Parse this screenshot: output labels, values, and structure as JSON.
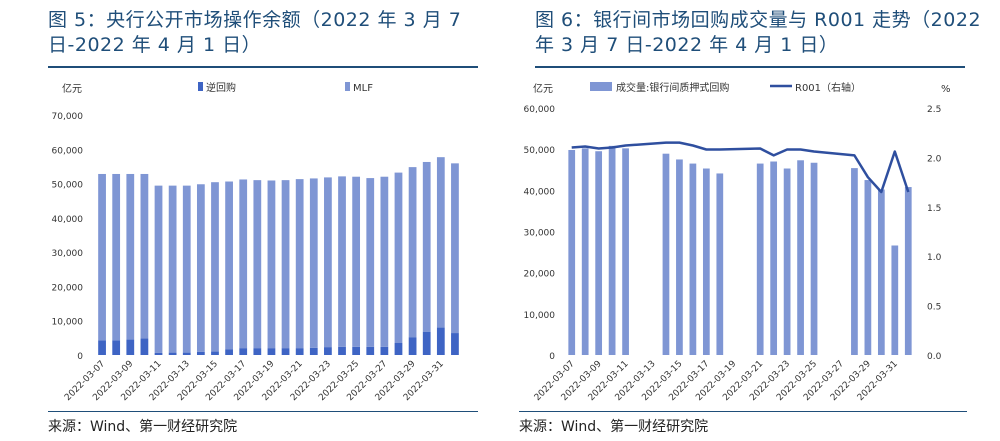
{
  "left_panel": {
    "title": "图 5：央行公开市场操作余额（2022 年 3 月 7 日-2022 年 4 月 1 日）",
    "source": "来源：Wind、第一财经研究院"
  },
  "right_panel": {
    "title": "图 6：银行间市场回购成交量与 R001 走势（2022 年 3 月 7 日-2022 年 4 月 1 日）",
    "source": "来源：Wind、第一财经研究院"
  },
  "colors": {
    "light_bar": "#7f96d4",
    "dark_bar": "#3e64c4",
    "line": "#2f4f9f",
    "title": "#1f4e79"
  },
  "chart_data": [
    {
      "type": "bar",
      "stacked": true,
      "unit_label": "亿元",
      "categories": [
        "2022-03-07",
        "2022-03-08",
        "2022-03-09",
        "2022-03-10",
        "2022-03-11",
        "2022-03-12",
        "2022-03-13",
        "2022-03-14",
        "2022-03-15",
        "2022-03-16",
        "2022-03-17",
        "2022-03-18",
        "2022-03-19",
        "2022-03-20",
        "2022-03-21",
        "2022-03-22",
        "2022-03-23",
        "2022-03-24",
        "2022-03-25",
        "2022-03-26",
        "2022-03-27",
        "2022-03-28",
        "2022-03-29",
        "2022-03-30",
        "2022-03-31",
        "2022-04-01"
      ],
      "x_tick_labels": [
        "2022-03-07",
        "",
        "2022-03-09",
        "",
        "2022-03-11",
        "",
        "2022-03-13",
        "",
        "2022-03-15",
        "",
        "2022-03-17",
        "",
        "2022-03-19",
        "",
        "2022-03-21",
        "",
        "2022-03-23",
        "",
        "2022-03-25",
        "",
        "2022-03-27",
        "",
        "2022-03-29",
        "",
        "2022-03-31",
        ""
      ],
      "series": [
        {
          "name": "逆回购",
          "values": [
            4300,
            4300,
            4500,
            4800,
            600,
            700,
            700,
            900,
            1000,
            1600,
            2000,
            2000,
            2000,
            2000,
            2000,
            2100,
            2300,
            2400,
            2400,
            2400,
            2400,
            3500,
            5200,
            6800,
            8000,
            6400
          ]
        },
        {
          "name": "MLF",
          "values": [
            48500,
            48500,
            48300,
            48000,
            48800,
            48700,
            48700,
            48900,
            49400,
            49000,
            49200,
            49000,
            48900,
            49000,
            49300,
            49400,
            49500,
            49700,
            49600,
            49200,
            49600,
            49700,
            49600,
            49500,
            49700,
            49500
          ]
        }
      ],
      "ylim": [
        0,
        70000
      ],
      "yticks": [
        "0",
        "10,000",
        "20,000",
        "30,000",
        "40,000",
        "50,000",
        "60,000",
        "70,000"
      ],
      "legend_position": "top"
    },
    {
      "type": "bar+line",
      "left_unit_label": "亿元",
      "right_unit_label": "%",
      "categories": [
        "2022-03-07",
        "2022-03-08",
        "2022-03-09",
        "2022-03-10",
        "2022-03-11",
        "2022-03-12",
        "2022-03-13",
        "2022-03-14",
        "2022-03-15",
        "2022-03-16",
        "2022-03-17",
        "2022-03-18",
        "2022-03-19",
        "2022-03-20",
        "2022-03-21",
        "2022-03-22",
        "2022-03-23",
        "2022-03-24",
        "2022-03-25",
        "2022-03-26",
        "2022-03-27",
        "2022-03-28",
        "2022-03-29",
        "2022-03-30",
        "2022-03-31",
        "2022-04-01"
      ],
      "x_tick_labels": [
        "2022-03-07",
        "",
        "2022-03-09",
        "",
        "2022-03-11",
        "",
        "2022-03-13",
        "",
        "2022-03-15",
        "",
        "2022-03-17",
        "",
        "2022-03-19",
        "",
        "2022-03-21",
        "",
        "2022-03-23",
        "",
        "2022-03-25",
        "",
        "2022-03-27",
        "",
        "2022-03-29",
        "",
        "2022-03-31",
        ""
      ],
      "bar_series": {
        "name": "成交量:银行间质押式回购",
        "values": [
          49800,
          50200,
          49500,
          50800,
          50200,
          48900,
          47500,
          46500,
          45300,
          44100,
          46500,
          47000,
          45300,
          47300,
          46700,
          45400,
          42500,
          40200,
          26600,
          40800
        ]
      },
      "line_series": {
        "name": "R001（右轴）",
        "values": [
          2.1,
          2.11,
          2.09,
          2.1,
          2.12,
          2.15,
          2.15,
          2.12,
          2.08,
          2.08,
          2.09,
          2.02,
          2.08,
          2.08,
          2.06,
          2.02,
          1.8,
          1.65,
          2.06,
          1.65
        ]
      },
      "bar_categories": [
        "2022-03-07",
        "2022-03-08",
        "2022-03-09",
        "2022-03-10",
        "2022-03-11",
        "2022-03-14",
        "2022-03-15",
        "2022-03-16",
        "2022-03-17",
        "2022-03-18",
        "2022-03-21",
        "2022-03-22",
        "2022-03-23",
        "2022-03-24",
        "2022-03-25",
        "2022-03-28",
        "2022-03-29",
        "2022-03-30",
        "2022-03-31",
        "2022-04-01"
      ],
      "ylim_left": [
        0,
        60000
      ],
      "yticks_left": [
        "0",
        "10,000",
        "20,000",
        "30,000",
        "40,000",
        "50,000",
        "60,000"
      ],
      "ylim_right": [
        0,
        2.5
      ],
      "yticks_right": [
        "0.0",
        "0.5",
        "1.0",
        "1.5",
        "2.0",
        "2.5"
      ],
      "legend_position": "top"
    }
  ]
}
